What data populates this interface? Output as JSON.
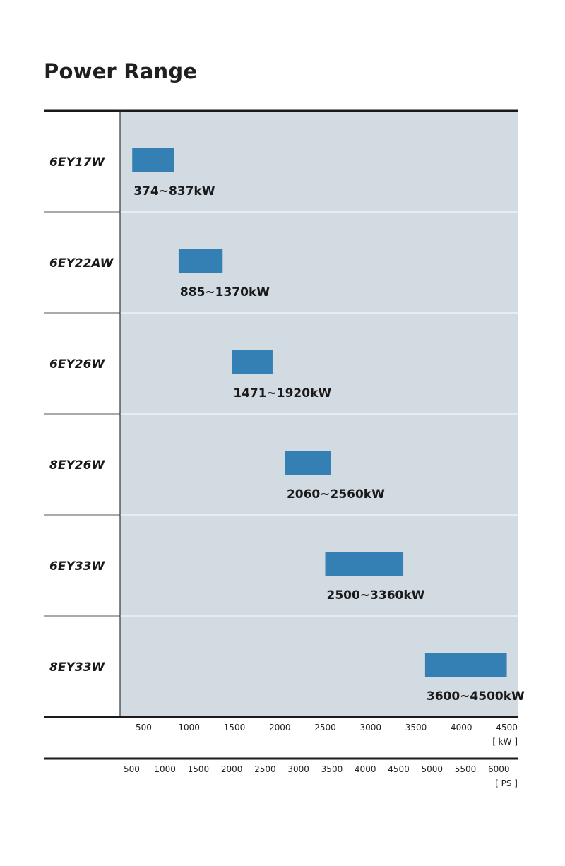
{
  "page": {
    "title": "Power Range"
  },
  "colors": {
    "plot_background": "#d2dae2",
    "bar": "#3480b4",
    "rule": "#1a1a1a",
    "row_separator": "#ffffff"
  },
  "chart_data": {
    "type": "bar",
    "orientation": "horizontal-range",
    "title": "Power Range",
    "categories": [
      "6EY17W",
      "6EY22AW",
      "6EY26W",
      "8EY26W",
      "6EY33W",
      "8EY33W"
    ],
    "ranges": [
      {
        "model": "6EY17W",
        "min": 374,
        "max": 837,
        "label": "374~837kW"
      },
      {
        "model": "6EY22AW",
        "min": 885,
        "max": 1370,
        "label": "885~1370kW"
      },
      {
        "model": "6EY26W",
        "min": 1471,
        "max": 1920,
        "label": "1471~1920kW"
      },
      {
        "model": "8EY26W",
        "min": 2060,
        "max": 2560,
        "label": "2060~2560kW"
      },
      {
        "model": "6EY33W",
        "min": 2500,
        "max": 3360,
        "label": "2500~3360kW"
      },
      {
        "model": "8EY33W",
        "min": 3600,
        "max": 4500,
        "label": "3600~4500kW"
      }
    ],
    "xlim": [
      240,
      4620
    ],
    "axis_kw": {
      "unit_label": "[ kW ]",
      "ticks": [
        500,
        1000,
        1500,
        2000,
        2500,
        3000,
        3500,
        4000,
        4500
      ]
    },
    "axis_ps": {
      "unit_label": "[ PS ]",
      "ps_per_kw": 1.36,
      "ticks": [
        500,
        1000,
        1500,
        2000,
        2500,
        3000,
        3500,
        4000,
        4500,
        5000,
        5500,
        6000
      ]
    },
    "grid": false
  }
}
